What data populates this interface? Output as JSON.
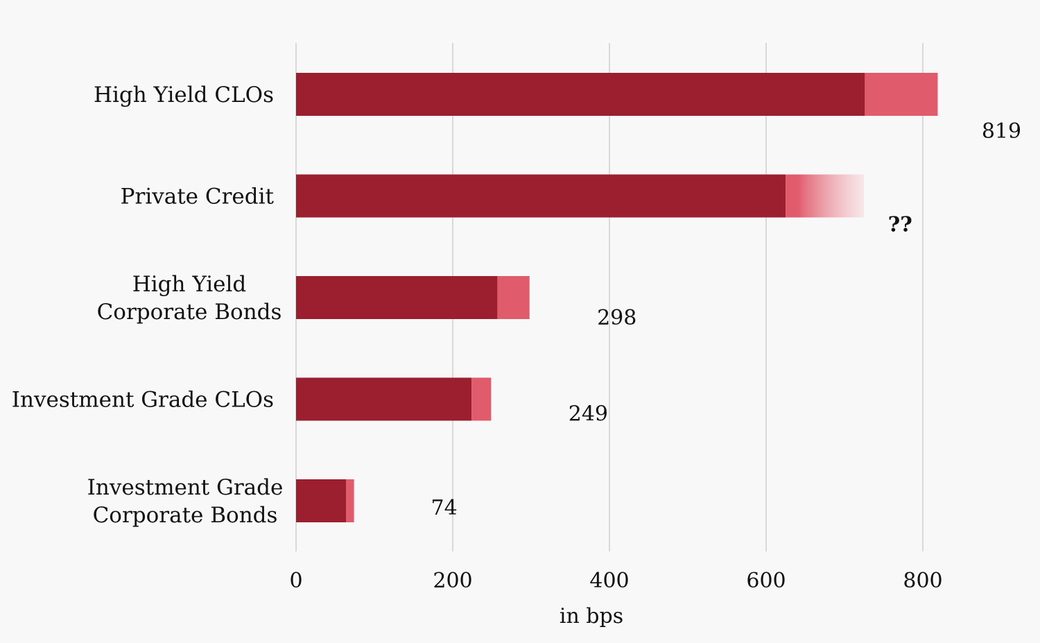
{
  "chart_data": {
    "type": "bar",
    "orientation": "horizontal",
    "stacked": true,
    "categories": [
      [
        "High Yield CLOs"
      ],
      [
        "Private Credit"
      ],
      [
        "High Yield",
        "Corporate Bonds"
      ],
      [
        "Investment Grade CLOs"
      ],
      [
        "Investment Grade",
        "Corporate Bonds"
      ]
    ],
    "series": [
      {
        "values": [
          726,
          625,
          257,
          224,
          64
        ]
      },
      {
        "values": [
          93,
          100,
          41,
          25,
          10
        ]
      }
    ],
    "value_labels": [
      "819",
      "??",
      "298",
      "249",
      "74"
    ],
    "xlabel": "in bps",
    "ylabel": "",
    "title": "",
    "xlim": [
      0,
      800
    ],
    "xticks": [
      0,
      200,
      400,
      600,
      800
    ],
    "grid": "vertical",
    "colors": {
      "primary": "#9b1f2e",
      "secondary": "#e05c6c",
      "faded": "#f6dde0",
      "grid": "#d9d9d9",
      "background": "#f8f8f8"
    }
  }
}
